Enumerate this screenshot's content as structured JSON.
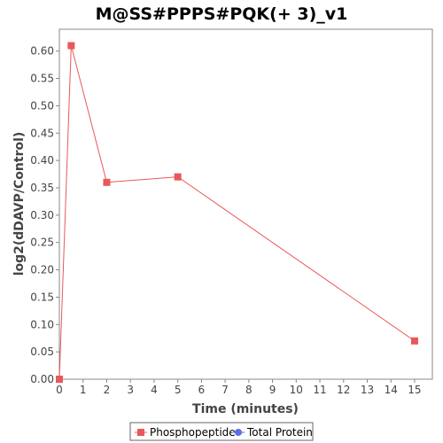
{
  "chart_data": {
    "type": "line",
    "title": "M@SS#PPPS#PQK(+ 3)_v1",
    "xlabel": "Time (minutes)",
    "ylabel": "log2(dDAVP/Control)",
    "xlim": [
      0,
      15.75
    ],
    "ylim": [
      0,
      0.64
    ],
    "xticks": [
      "0",
      "1",
      "2",
      "3",
      "4",
      "5",
      "6",
      "7",
      "8",
      "9",
      "10",
      "11",
      "12",
      "13",
      "14",
      "15"
    ],
    "yticks": [
      "0.00",
      "0.05",
      "0.10",
      "0.15",
      "0.20",
      "0.25",
      "0.30",
      "0.35",
      "0.40",
      "0.45",
      "0.50",
      "0.55",
      "0.60"
    ],
    "grid": false,
    "legend_position": "bottom-center",
    "series": [
      {
        "name": "Phosphopeptide",
        "color": "#e8585a",
        "marker": "square",
        "points": [
          [
            0,
            0.0
          ],
          [
            0.5,
            0.61
          ],
          [
            2,
            0.36
          ],
          [
            5,
            0.37
          ],
          [
            15,
            0.07
          ]
        ]
      },
      {
        "name": "Total Protein",
        "color": "#5b6ee6",
        "marker": "circle",
        "points": []
      }
    ]
  }
}
